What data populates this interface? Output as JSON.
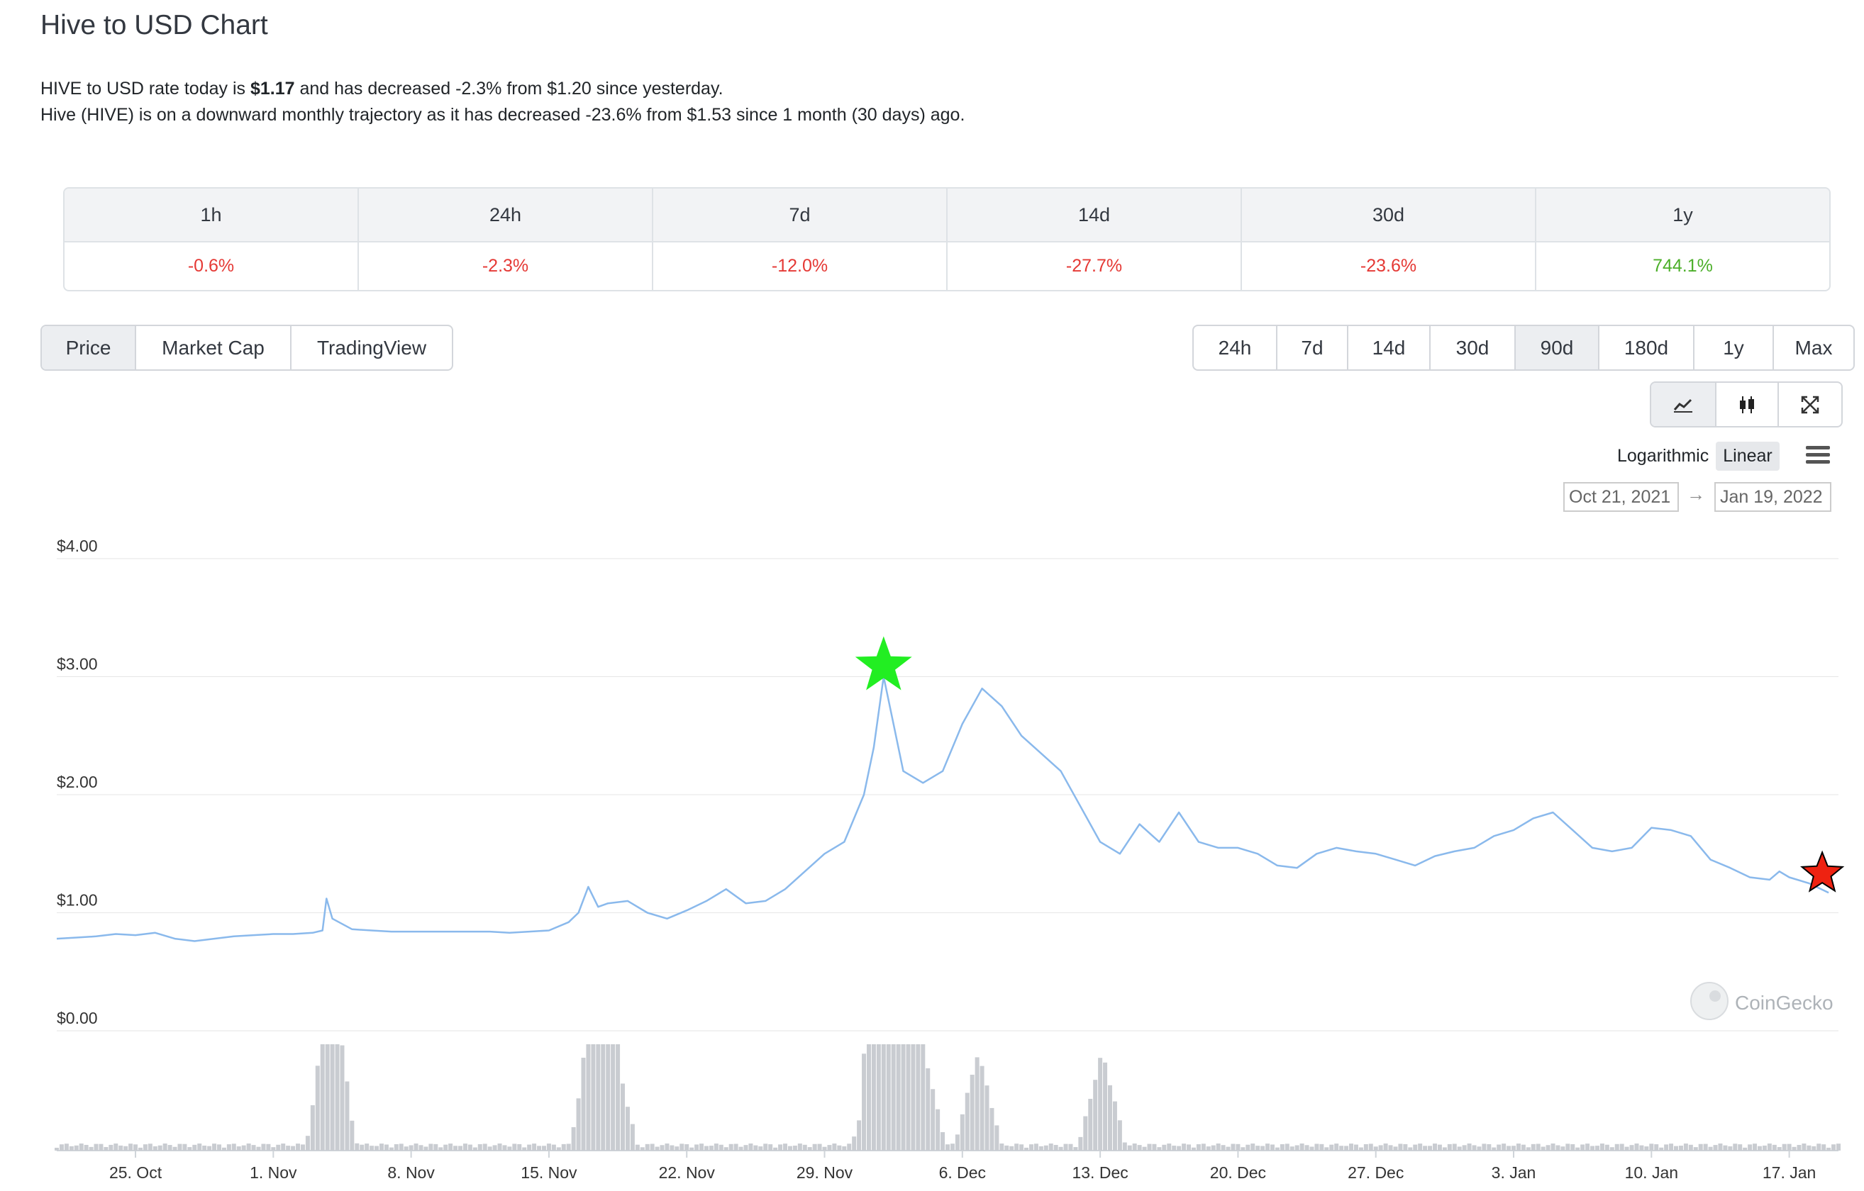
{
  "title": "Hive to USD Chart",
  "description": {
    "line1_prefix": "HIVE to USD rate today is ",
    "line1_price": "$1.17",
    "line1_suffix": " and has decreased -2.3% from $1.20 since yesterday.",
    "line2": "Hive (HIVE) is on a downward monthly trajectory as it has decreased -23.6% from $1.53 since 1 month (30 days) ago."
  },
  "stats": [
    {
      "period": "1h",
      "change": "-0.6%",
      "dir": "neg"
    },
    {
      "period": "24h",
      "change": "-2.3%",
      "dir": "neg"
    },
    {
      "period": "7d",
      "change": "-12.0%",
      "dir": "neg"
    },
    {
      "period": "14d",
      "change": "-27.7%",
      "dir": "neg"
    },
    {
      "period": "30d",
      "change": "-23.6%",
      "dir": "neg"
    },
    {
      "period": "1y",
      "change": "744.1%",
      "dir": "pos"
    }
  ],
  "chart_type_tabs": [
    {
      "label": "Price",
      "active": true
    },
    {
      "label": "Market Cap",
      "active": false
    },
    {
      "label": "TradingView",
      "active": false
    }
  ],
  "range_tabs": [
    {
      "label": "24h",
      "active": false
    },
    {
      "label": "7d",
      "active": false
    },
    {
      "label": "14d",
      "active": false
    },
    {
      "label": "30d",
      "active": false
    },
    {
      "label": "90d",
      "active": true
    },
    {
      "label": "180d",
      "active": false
    },
    {
      "label": "1y",
      "active": false
    },
    {
      "label": "Max",
      "active": false
    }
  ],
  "view_tools": [
    "line-chart-icon",
    "candlestick-icon",
    "fullscreen-icon"
  ],
  "scale": {
    "logarithmic": "Logarithmic",
    "linear": "Linear",
    "active": "Linear"
  },
  "date_range": {
    "from": "Oct 21, 2021",
    "to": "Jan 19, 2022",
    "arrow": "→"
  },
  "watermark": "CoinGecko",
  "colors": {
    "line": "#8ab9ec",
    "negative": "#e53935",
    "positive": "#4caf2a",
    "high_marker": "#22ee22",
    "low_marker": "#ee2211",
    "volume": "#c9ccd1"
  },
  "chart_data": {
    "type": "line",
    "ylabel": "",
    "y_ticks": [
      "$4.00",
      "$3.00",
      "$2.00",
      "$1.00",
      "$0.00"
    ],
    "ylim": [
      0,
      4
    ],
    "x_ticks": [
      "25. Oct",
      "1. Nov",
      "8. Nov",
      "15. Nov",
      "22. Nov",
      "29. Nov",
      "6. Dec",
      "13. Dec",
      "20. Dec",
      "27. Dec",
      "3. Jan",
      "10. Jan",
      "17. Jan"
    ],
    "x_tick_days": [
      4,
      11,
      18,
      25,
      32,
      39,
      46,
      53,
      60,
      67,
      74,
      81,
      88
    ],
    "x_range_days": [
      0,
      90.5
    ],
    "series": [
      {
        "points": [
          [
            0,
            0.78
          ],
          [
            1,
            0.79
          ],
          [
            2,
            0.8
          ],
          [
            3,
            0.82
          ],
          [
            4,
            0.81
          ],
          [
            5,
            0.83
          ],
          [
            6,
            0.78
          ],
          [
            7,
            0.76
          ],
          [
            8,
            0.78
          ],
          [
            9,
            0.8
          ],
          [
            10,
            0.81
          ],
          [
            11,
            0.82
          ],
          [
            12,
            0.82
          ],
          [
            13,
            0.83
          ],
          [
            13.5,
            0.85
          ],
          [
            13.7,
            1.12
          ],
          [
            14,
            0.95
          ],
          [
            15,
            0.86
          ],
          [
            16,
            0.85
          ],
          [
            17,
            0.84
          ],
          [
            18,
            0.84
          ],
          [
            19,
            0.84
          ],
          [
            20,
            0.84
          ],
          [
            21,
            0.84
          ],
          [
            22,
            0.84
          ],
          [
            23,
            0.83
          ],
          [
            24,
            0.84
          ],
          [
            25,
            0.85
          ],
          [
            26,
            0.92
          ],
          [
            26.5,
            1.0
          ],
          [
            27,
            1.22
          ],
          [
            27.5,
            1.05
          ],
          [
            28,
            1.08
          ],
          [
            29,
            1.1
          ],
          [
            30,
            1.0
          ],
          [
            31,
            0.95
          ],
          [
            32,
            1.02
          ],
          [
            33,
            1.1
          ],
          [
            34,
            1.2
          ],
          [
            35,
            1.08
          ],
          [
            36,
            1.1
          ],
          [
            37,
            1.2
          ],
          [
            38,
            1.35
          ],
          [
            39,
            1.5
          ],
          [
            40,
            1.6
          ],
          [
            41,
            2.0
          ],
          [
            41.5,
            2.4
          ],
          [
            42,
            3.0
          ],
          [
            42.5,
            2.6
          ],
          [
            43,
            2.2
          ],
          [
            44,
            2.1
          ],
          [
            45,
            2.2
          ],
          [
            46,
            2.6
          ],
          [
            47,
            2.9
          ],
          [
            48,
            2.75
          ],
          [
            49,
            2.5
          ],
          [
            50,
            2.35
          ],
          [
            51,
            2.2
          ],
          [
            52,
            1.9
          ],
          [
            53,
            1.6
          ],
          [
            54,
            1.5
          ],
          [
            55,
            1.75
          ],
          [
            56,
            1.6
          ],
          [
            57,
            1.85
          ],
          [
            58,
            1.6
          ],
          [
            59,
            1.55
          ],
          [
            60,
            1.55
          ],
          [
            61,
            1.5
          ],
          [
            62,
            1.4
          ],
          [
            63,
            1.38
          ],
          [
            64,
            1.5
          ],
          [
            65,
            1.55
          ],
          [
            66,
            1.52
          ],
          [
            67,
            1.5
          ],
          [
            68,
            1.45
          ],
          [
            69,
            1.4
          ],
          [
            70,
            1.48
          ],
          [
            71,
            1.52
          ],
          [
            72,
            1.55
          ],
          [
            73,
            1.65
          ],
          [
            74,
            1.7
          ],
          [
            75,
            1.8
          ],
          [
            76,
            1.85
          ],
          [
            77,
            1.7
          ],
          [
            78,
            1.55
          ],
          [
            79,
            1.52
          ],
          [
            80,
            1.55
          ],
          [
            81,
            1.72
          ],
          [
            82,
            1.7
          ],
          [
            83,
            1.65
          ],
          [
            84,
            1.45
          ],
          [
            85,
            1.38
          ],
          [
            86,
            1.3
          ],
          [
            87,
            1.28
          ],
          [
            87.5,
            1.35
          ],
          [
            88,
            1.3
          ],
          [
            89,
            1.25
          ],
          [
            90,
            1.17
          ]
        ]
      }
    ],
    "volume_spike_days": [
      13.8,
      14.1,
      27.2,
      27.6,
      28.3,
      41.6,
      42.0,
      42.3,
      43.1,
      44.0,
      46.8,
      53.1
    ]
  }
}
